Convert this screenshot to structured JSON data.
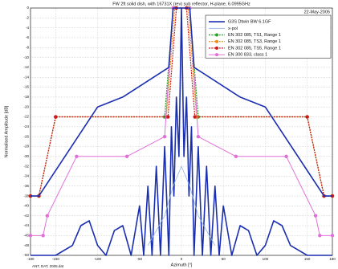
{
  "chart_data": {
    "type": "line",
    "title": "FW 2ft solid dish, with 16731X (rev) sub reflector, H-plane, 6.0995GHz",
    "date": "22-May-2005",
    "x_label": "Azimuth [°]",
    "y_label": "Normalised Amplitude [dB]",
    "footnote": "ANT, DAT, 2005.dat",
    "xlim": [
      -180,
      180
    ],
    "ylim": [
      -50,
      0
    ],
    "xticks": [
      -180,
      -150,
      -100,
      -50,
      0,
      50,
      100,
      150,
      180
    ],
    "yticks": [
      0,
      -2,
      -4,
      -6,
      -8,
      -10,
      -12,
      -14,
      -16,
      -18,
      -20,
      -22,
      -24,
      -26,
      -28,
      -30,
      -32,
      -34,
      -36,
      -38,
      -40,
      -42,
      -44,
      -46,
      -48,
      -50
    ],
    "grid": true,
    "legend": "upper right",
    "series": [
      {
        "name": "G3S Dtwin BW 6.1GF",
        "color": "#1a2fb0",
        "width": 1.6,
        "marker": false,
        "x": [
          -180,
          -150,
          -130,
          -120,
          -110,
          -100,
          -90,
          -80,
          -70,
          -60,
          -50,
          -45,
          -40,
          -35,
          -30,
          -25,
          -20,
          -15,
          -12,
          -9,
          -6,
          -3,
          0,
          3,
          6,
          9,
          12,
          15,
          20,
          25,
          30,
          35,
          40,
          45,
          50,
          60,
          70,
          80,
          90,
          100,
          110,
          120,
          130,
          150,
          180
        ],
        "values": [
          -50,
          -50,
          -48,
          -44,
          -43,
          -48,
          -50,
          -45,
          -44,
          -50,
          -40,
          -50,
          -36,
          -50,
          -32,
          -50,
          -28,
          -50,
          -24,
          -38,
          -18,
          -30,
          0,
          -30,
          -18,
          -38,
          -24,
          -50,
          -28,
          -50,
          -32,
          -50,
          -36,
          -50,
          -40,
          -50,
          -44,
          -45,
          -50,
          -48,
          -43,
          -44,
          -48,
          -50,
          -50
        ]
      },
      {
        "name": "x-pol",
        "color": "#8fb4e8",
        "width": 0.8,
        "marker": false,
        "x": [
          -40,
          -20,
          -10,
          0,
          10,
          20,
          40
        ],
        "values": [
          -48,
          -42,
          -36,
          -32,
          -36,
          -42,
          -48
        ]
      },
      {
        "name": "EN 302 085, TS1, Range 1",
        "color": "#2aa02a",
        "width": 1.2,
        "dash": true,
        "marker": true,
        "x": [
          -180,
          -170,
          -150,
          -20,
          -10,
          10,
          20,
          150,
          170,
          180
        ],
        "values": [
          -38,
          -38,
          -22,
          -22,
          0,
          0,
          -22,
          -22,
          -38,
          -38
        ]
      },
      {
        "name": "EN 302 085, TS3, Range 1",
        "color": "#f08a10",
        "width": 1.2,
        "dash": true,
        "marker": true,
        "x": [
          -180,
          -170,
          -150,
          -18,
          -8,
          8,
          18,
          150,
          170,
          180
        ],
        "values": [
          -38,
          -38,
          -22,
          -22,
          0,
          0,
          -22,
          -22,
          -38,
          -38
        ]
      },
      {
        "name": "EN 302 085, TS5, Range 1",
        "color": "#d01818",
        "width": 1.2,
        "dash": true,
        "marker": true,
        "x": [
          -180,
          -170,
          -150,
          -16,
          -6,
          6,
          16,
          150,
          170,
          180
        ],
        "values": [
          -38,
          -38,
          -22,
          -22,
          0,
          0,
          -22,
          -22,
          -38,
          -38
        ]
      },
      {
        "name": "EN 300 833, class 1",
        "color": "#e070d8",
        "width": 1.0,
        "marker": true,
        "x": [
          -180,
          -165,
          -160,
          -125,
          -65,
          -20,
          -10,
          10,
          20,
          65,
          125,
          160,
          165,
          180
        ],
        "values": [
          -46,
          -46,
          -42,
          -30,
          -30,
          -26,
          0,
          0,
          -26,
          -30,
          -30,
          -42,
          -46,
          -46
        ]
      },
      {
        "name": "",
        "color": "#1a2fb0",
        "width": 1.6,
        "marker": false,
        "legend_hidden": true,
        "x": [
          -180,
          -170,
          -100,
          -70,
          -15,
          -10,
          10,
          15,
          70,
          100,
          170,
          180
        ],
        "values": [
          -38,
          -38,
          -20,
          -18,
          -12,
          0,
          0,
          -12,
          -18,
          -20,
          -38,
          -38
        ]
      }
    ]
  }
}
